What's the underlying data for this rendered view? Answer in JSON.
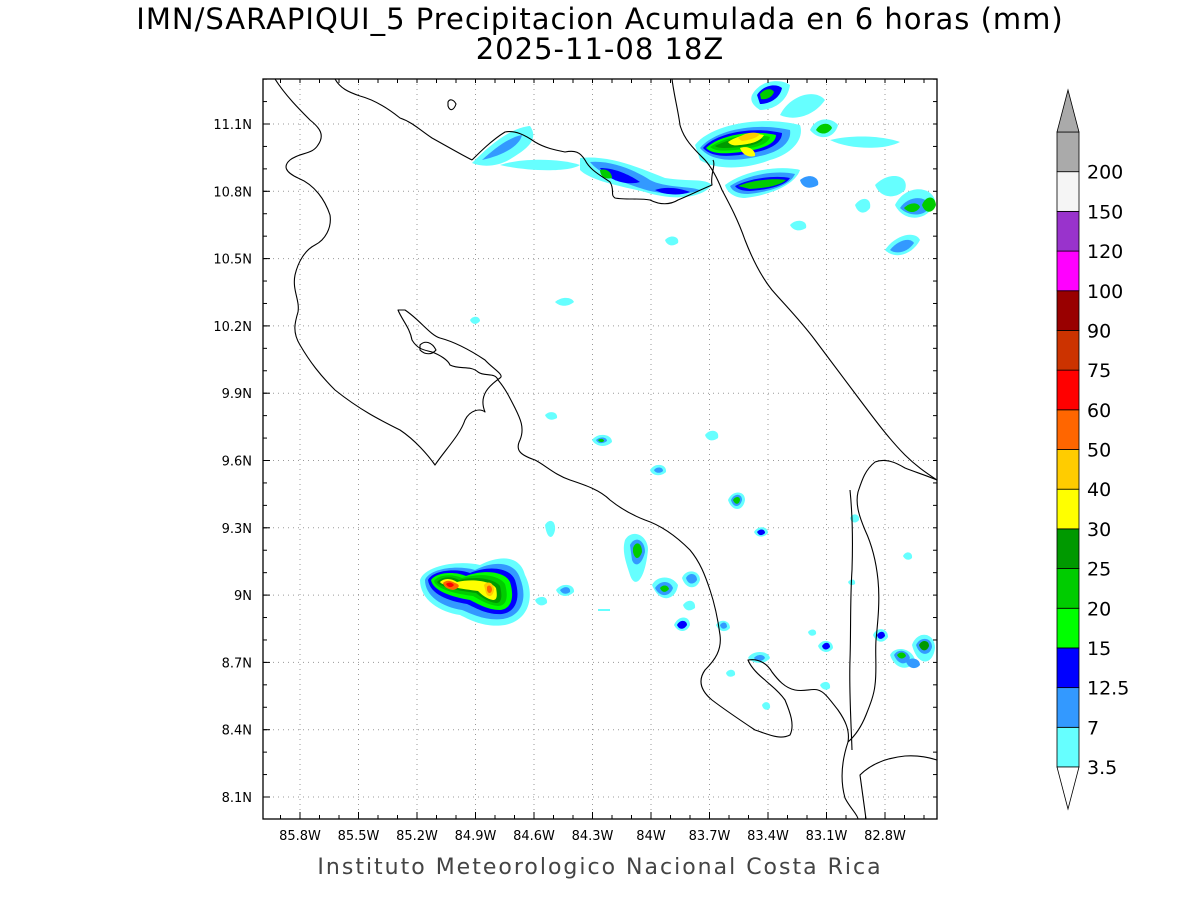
{
  "title": {
    "line1": "IMN/SARAPIQUI_5 Precipitacion Acumulada en 6 horas (mm)",
    "line2": "2025-11-08 18Z"
  },
  "footer": "Instituto Meteorologico Nacional Costa Rica",
  "axes": {
    "x_ticks": [
      "85.8W",
      "85.5W",
      "85.2W",
      "84.9W",
      "84.6W",
      "84.3W",
      "84W",
      "83.7W",
      "83.4W",
      "83.1W",
      "82.8W"
    ],
    "y_ticks": [
      "11.1N",
      "10.8N",
      "10.5N",
      "10.2N",
      "9.9N",
      "9.6N",
      "9.3N",
      "9N",
      "8.7N",
      "8.4N",
      "8.1N"
    ]
  },
  "colorbar": {
    "levels": [
      {
        "label": "3.5",
        "color": "#66ffff"
      },
      {
        "label": "7",
        "color": "#3399ff"
      },
      {
        "label": "12.5",
        "color": "#0000ff"
      },
      {
        "label": "15",
        "color": "#00ff00"
      },
      {
        "label": "20",
        "color": "#00cc00"
      },
      {
        "label": "25",
        "color": "#009900"
      },
      {
        "label": "30",
        "color": "#ffff00"
      },
      {
        "label": "40",
        "color": "#ffcc00"
      },
      {
        "label": "50",
        "color": "#ff6600"
      },
      {
        "label": "60",
        "color": "#ff0000"
      },
      {
        "label": "75",
        "color": "#cc3300"
      },
      {
        "label": "90",
        "color": "#990000"
      },
      {
        "label": "100",
        "color": "#ff00ff"
      },
      {
        "label": "120",
        "color": "#9933cc"
      },
      {
        "label": "150",
        "color": "#f5f5f5"
      },
      {
        "label": "200",
        "color": "#aaaaaa"
      }
    ],
    "under_color": "#ffffff",
    "over_color": "#aaaaaa"
  }
}
